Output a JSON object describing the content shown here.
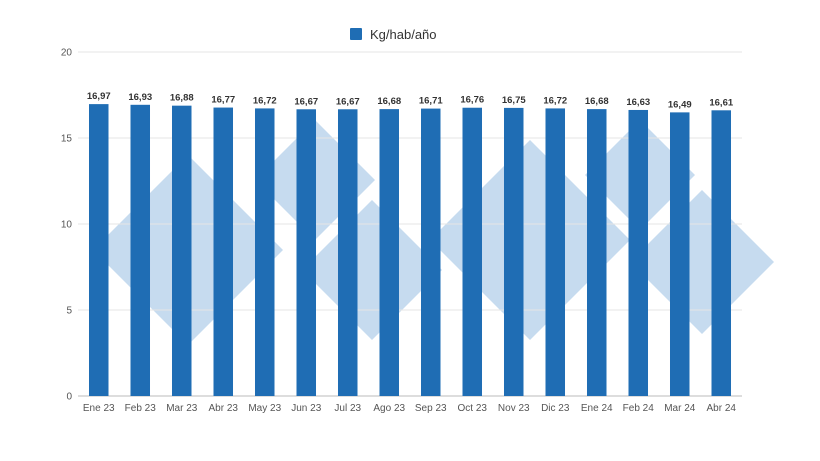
{
  "chart_data": {
    "type": "bar",
    "categories": [
      "Ene 23",
      "Feb 23",
      "Mar 23",
      "Abr 23",
      "May 23",
      "Jun 23",
      "Jul 23",
      "Ago 23",
      "Sep 23",
      "Oct 23",
      "Nov 23",
      "Dic 23",
      "Ene 24",
      "Feb 24",
      "Mar 24",
      "Abr 24"
    ],
    "series": [
      {
        "name": "Kg/hab/año",
        "values": [
          16.97,
          16.93,
          16.88,
          16.77,
          16.72,
          16.67,
          16.67,
          16.68,
          16.71,
          16.76,
          16.75,
          16.72,
          16.68,
          16.63,
          16.49,
          16.61
        ],
        "labels": [
          "16,97",
          "16,93",
          "16,88",
          "16,77",
          "16,72",
          "16,67",
          "16,67",
          "16,68",
          "16,71",
          "16,76",
          "16,75",
          "16,72",
          "16,68",
          "16,63",
          "16,49",
          "16,61"
        ]
      }
    ],
    "y_ticks": [
      "0",
      "5",
      "10",
      "15",
      "20"
    ],
    "ylim": [
      0,
      20
    ],
    "grid": true,
    "legend_position": "top-center",
    "bar_color": "#1f6db4",
    "watermark_color": "#bcd5ec"
  }
}
